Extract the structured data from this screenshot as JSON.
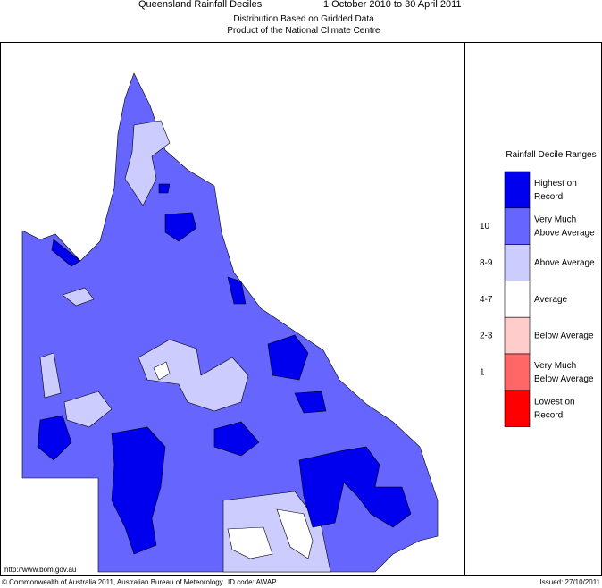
{
  "header": {
    "title": "Queensland Rainfall Deciles",
    "period": "1 October 2010 to 30 April 2011",
    "subtitle": [
      "Distribution Based on Gridded Data",
      "Product of the National Climate Centre"
    ]
  },
  "legend": {
    "title": "Rainfall Decile Ranges",
    "items": [
      {
        "lines": [
          "Highest on",
          "Record"
        ],
        "color": "#0000ee"
      },
      {
        "range": "10",
        "lines": [
          "Very Much",
          "Above Average"
        ],
        "color": "#6666ff"
      },
      {
        "range": "8-9",
        "lines": [
          "Above Average"
        ],
        "color": "#ccccff"
      },
      {
        "range": "4-7",
        "lines": [
          "Average"
        ],
        "color": "#ffffff"
      },
      {
        "range": "2-3",
        "lines": [
          "Below Average"
        ],
        "color": "#ffcccc"
      },
      {
        "range": "1",
        "lines": [
          "Very Much",
          "Below Average"
        ],
        "color": "#ff6666"
      },
      {
        "lines": [
          "Lowest on",
          "Record"
        ],
        "color": "#ff0000"
      }
    ]
  },
  "footer": {
    "url": "http://www.bom.gov.au",
    "copyright": "© Commonwealth of Australia 2011, Australian Bureau of Meteorology",
    "id_code": "ID code: AWAP",
    "issued": "Issued: 27/10/2011"
  }
}
